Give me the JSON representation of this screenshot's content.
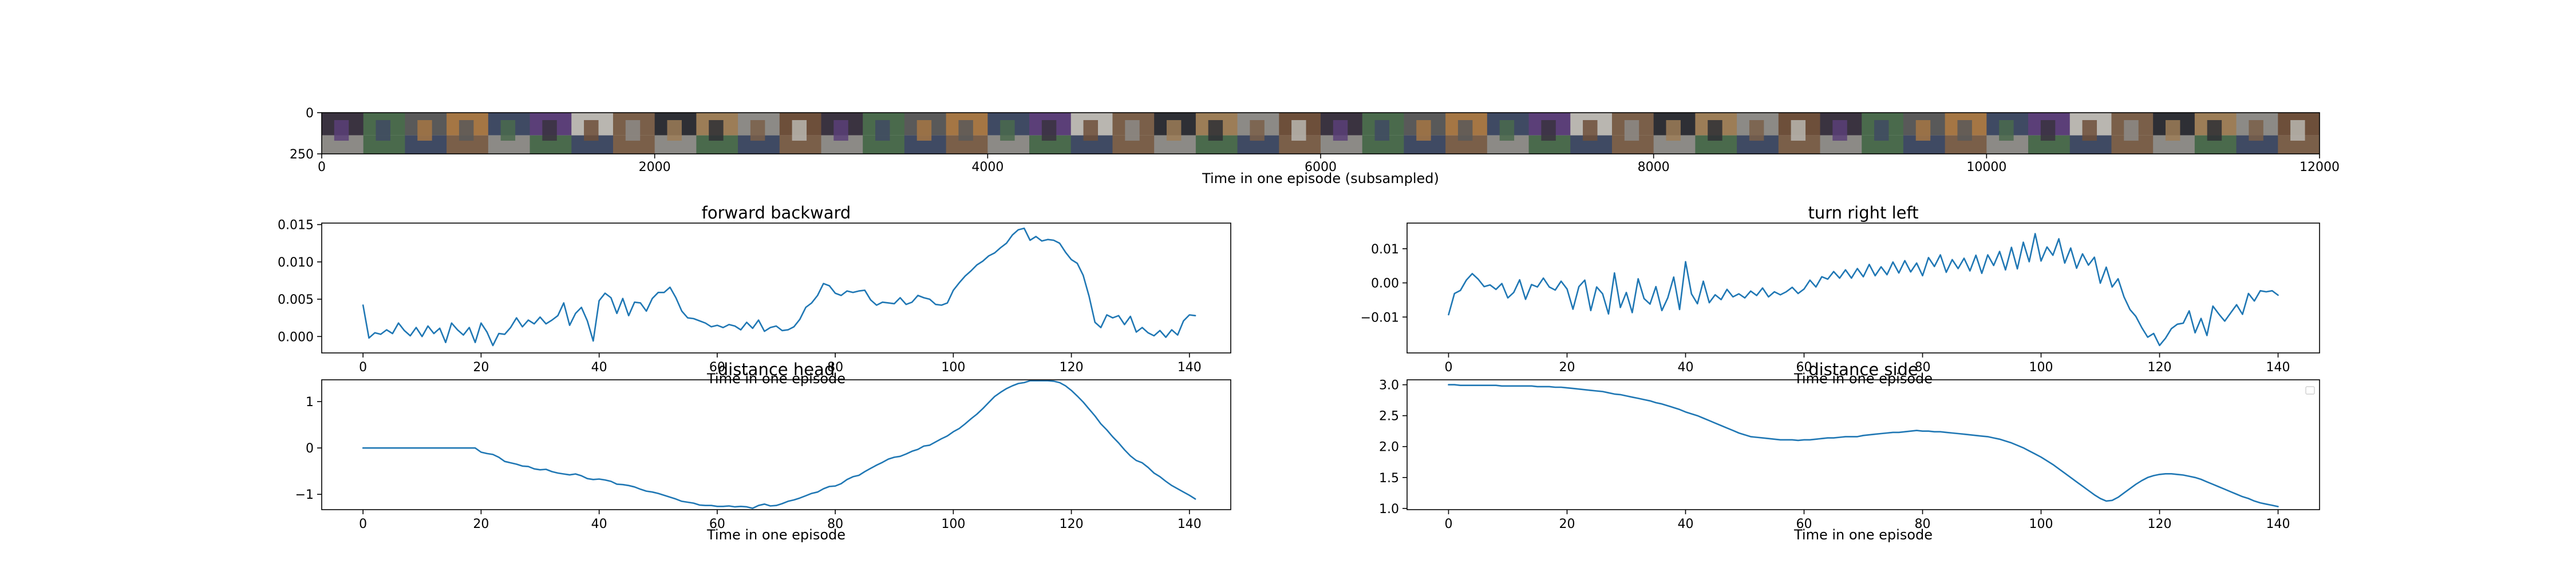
{
  "colors": {
    "series": "#1f77b4",
    "axis": "#000000"
  },
  "chart_data": [
    {
      "id": "strip",
      "type": "image",
      "title": "",
      "xlabel": "Time in one episode (subsampled)",
      "ylabel": "",
      "xlim": [
        0,
        12000
      ],
      "ylim": [
        250,
        0
      ],
      "xticks": [
        0,
        2000,
        4000,
        6000,
        8000,
        10000,
        12000
      ],
      "yticks": [
        0,
        250
      ],
      "frame_count": 48,
      "frame_palette": [
        "#7a5f49",
        "#3a3340",
        "#5b3f78",
        "#8c8a86",
        "#a57644",
        "#2e2f35",
        "#4a6a4c",
        "#b9b6b0",
        "#6d4f3a",
        "#3f4a63",
        "#9c7d57",
        "#595959"
      ],
      "grid": false,
      "legend": "none"
    },
    {
      "id": "fb",
      "type": "line",
      "title": "forward backward",
      "xlabel": "Time in one episode",
      "ylabel": "",
      "xlim": [
        -7,
        147
      ],
      "ylim": [
        -0.0022,
        0.0152
      ],
      "xticks": [
        0,
        20,
        40,
        60,
        80,
        100,
        120,
        140
      ],
      "yticks": [
        0.0,
        0.005,
        0.01,
        0.015
      ],
      "ytick_labels": [
        "0.000",
        "0.005",
        "0.010",
        "0.015"
      ],
      "grid": false,
      "legend": "none",
      "series": [
        {
          "name": "",
          "x_start": 0,
          "x_step": 1,
          "values": [
            0.0042,
            -0.0002,
            0.0005,
            0.0003,
            0.0009,
            0.0004,
            0.0018,
            0.0008,
            0.0001,
            0.0012,
            0.0,
            0.0014,
            0.0004,
            0.0011,
            -0.0008,
            0.0018,
            0.0009,
            0.0002,
            0.0012,
            -0.0008,
            0.0018,
            0.0006,
            -0.0012,
            0.0004,
            0.0003,
            0.0012,
            0.0025,
            0.0013,
            0.0022,
            0.0017,
            0.0026,
            0.0017,
            0.0022,
            0.0028,
            0.0045,
            0.0015,
            0.0031,
            0.0039,
            0.0021,
            -0.0006,
            0.0048,
            0.0058,
            0.0052,
            0.0031,
            0.0051,
            0.0028,
            0.0046,
            0.0045,
            0.0034,
            0.0051,
            0.0059,
            0.0059,
            0.0066,
            0.0052,
            0.0034,
            0.0025,
            0.0024,
            0.0021,
            0.0018,
            0.0013,
            0.0015,
            0.0012,
            0.0016,
            0.0014,
            0.0009,
            0.0019,
            0.0011,
            0.0022,
            0.0007,
            0.0012,
            0.0014,
            0.0008,
            0.0009,
            0.0013,
            0.0023,
            0.0039,
            0.0045,
            0.0055,
            0.0071,
            0.0068,
            0.0058,
            0.0055,
            0.0061,
            0.0059,
            0.0061,
            0.0062,
            0.0049,
            0.0042,
            0.0046,
            0.0045,
            0.0044,
            0.0052,
            0.0043,
            0.0046,
            0.0055,
            0.0052,
            0.005,
            0.0043,
            0.0042,
            0.0045,
            0.0062,
            0.0072,
            0.0081,
            0.0088,
            0.0096,
            0.0101,
            0.0108,
            0.0112,
            0.0119,
            0.0125,
            0.0136,
            0.0143,
            0.0145,
            0.0129,
            0.0134,
            0.0128,
            0.013,
            0.0129,
            0.0125,
            0.0113,
            0.0103,
            0.0098,
            0.0082,
            0.0054,
            0.0019,
            0.0012,
            0.0029,
            0.0025,
            0.0028,
            0.0016,
            0.0027,
            0.0006,
            0.0012,
            0.0005,
            0.0001,
            0.0008,
            -0.0001,
            0.0009,
            0.0002,
            0.0021,
            0.0029,
            0.0028
          ]
        }
      ]
    },
    {
      "id": "tr",
      "type": "line",
      "title": "turn right left",
      "xlabel": "Time in one episode",
      "ylabel": "",
      "xlim": [
        -7,
        147
      ],
      "ylim": [
        -0.0205,
        0.0175
      ],
      "xticks": [
        0,
        20,
        40,
        60,
        80,
        100,
        120,
        140
      ],
      "yticks": [
        -0.01,
        0.0,
        0.01
      ],
      "ytick_labels": [
        "−0.01",
        "0.00",
        "0.01"
      ],
      "grid": false,
      "legend": "none",
      "series": [
        {
          "name": "",
          "x_start": 0,
          "x_step": 1,
          "values": [
            -0.0093,
            -0.0031,
            -0.0022,
            0.0008,
            0.0027,
            0.0011,
            -0.0011,
            -0.0006,
            -0.0019,
            -0.0002,
            -0.0044,
            -0.0028,
            0.0009,
            -0.0048,
            -0.0005,
            -0.0012,
            0.0014,
            -0.0012,
            -0.0021,
            0.0005,
            -0.0018,
            -0.0077,
            -0.0011,
            0.0008,
            -0.0081,
            -0.0012,
            -0.0032,
            -0.0091,
            0.0029,
            -0.0072,
            -0.0028,
            -0.0087,
            0.0012,
            -0.0046,
            -0.0062,
            -0.0011,
            -0.0081,
            -0.0044,
            0.0017,
            -0.0078,
            0.0062,
            -0.0032,
            -0.0061,
            0.0005,
            -0.0058,
            -0.0035,
            -0.0049,
            -0.0019,
            -0.0041,
            -0.0032,
            -0.0044,
            -0.0024,
            -0.0037,
            -0.0015,
            -0.0041,
            -0.0026,
            -0.0035,
            -0.0026,
            -0.0013,
            -0.0031,
            -0.0018,
            0.0008,
            -0.0012,
            0.0018,
            0.0011,
            0.0033,
            0.0014,
            0.0038,
            0.0014,
            0.0042,
            0.0018,
            0.0054,
            0.0021,
            0.0047,
            0.0024,
            0.0061,
            0.0029,
            0.0065,
            0.0032,
            0.0058,
            0.0021,
            0.0074,
            0.0048,
            0.0082,
            0.0031,
            0.0068,
            0.0042,
            0.0072,
            0.0035,
            0.0081,
            0.0028,
            0.0082,
            0.0051,
            0.0092,
            0.0038,
            0.0104,
            0.0041,
            0.0119,
            0.0062,
            0.0144,
            0.0064,
            0.0105,
            0.0081,
            0.0129,
            0.0058,
            0.0102,
            0.0043,
            0.0085,
            0.0052,
            0.0075,
            -0.0001,
            0.0046,
            -0.0012,
            0.0012,
            -0.0041,
            -0.0078,
            -0.0098,
            -0.0131,
            -0.0159,
            -0.0148,
            -0.0183,
            -0.0162,
            -0.0134,
            -0.0121,
            -0.0118,
            -0.0082,
            -0.0146,
            -0.0104,
            -0.0154,
            -0.0068,
            -0.0091,
            -0.0112,
            -0.0088,
            -0.0064,
            -0.0092,
            -0.0031,
            -0.0053,
            -0.0023,
            -0.0026,
            -0.0023,
            -0.0036
          ]
        }
      ]
    },
    {
      "id": "dh",
      "type": "line",
      "title": "distance head",
      "xlabel": "Time in one episode",
      "ylabel": "",
      "xlim": [
        -7,
        147
      ],
      "ylim": [
        -1.33,
        1.47
      ],
      "xticks": [
        0,
        20,
        40,
        60,
        80,
        100,
        120,
        140
      ],
      "yticks": [
        -1,
        0,
        1
      ],
      "ytick_labels": [
        "−1",
        "0",
        "1"
      ],
      "grid": false,
      "legend": "none",
      "series": [
        {
          "name": "",
          "x_start": 0,
          "x_step": 1,
          "values": [
            0.0,
            0.0,
            0.0,
            0.0,
            0.0,
            0.0,
            0.0,
            0.0,
            0.0,
            0.0,
            0.0,
            0.0,
            0.0,
            0.0,
            0.0,
            0.0,
            0.0,
            0.0,
            0.0,
            0.0,
            -0.09,
            -0.12,
            -0.14,
            -0.2,
            -0.29,
            -0.32,
            -0.35,
            -0.39,
            -0.4,
            -0.45,
            -0.47,
            -0.46,
            -0.51,
            -0.54,
            -0.56,
            -0.58,
            -0.56,
            -0.6,
            -0.66,
            -0.68,
            -0.67,
            -0.69,
            -0.72,
            -0.78,
            -0.79,
            -0.81,
            -0.84,
            -0.89,
            -0.93,
            -0.95,
            -0.98,
            -1.02,
            -1.06,
            -1.1,
            -1.15,
            -1.17,
            -1.19,
            -1.23,
            -1.24,
            -1.24,
            -1.26,
            -1.26,
            -1.25,
            -1.27,
            -1.26,
            -1.27,
            -1.3,
            -1.24,
            -1.21,
            -1.25,
            -1.24,
            -1.2,
            -1.15,
            -1.12,
            -1.08,
            -1.03,
            -0.98,
            -0.95,
            -0.88,
            -0.83,
            -0.82,
            -0.77,
            -0.68,
            -0.62,
            -0.59,
            -0.51,
            -0.44,
            -0.37,
            -0.31,
            -0.24,
            -0.2,
            -0.18,
            -0.13,
            -0.07,
            -0.03,
            0.04,
            0.06,
            0.13,
            0.2,
            0.26,
            0.35,
            0.42,
            0.52,
            0.63,
            0.73,
            0.85,
            0.98,
            1.11,
            1.2,
            1.28,
            1.34,
            1.39,
            1.41,
            1.45,
            1.45,
            1.45,
            1.45,
            1.44,
            1.41,
            1.34,
            1.24,
            1.12,
            0.99,
            0.84,
            0.69,
            0.52,
            0.39,
            0.24,
            0.11,
            -0.04,
            -0.17,
            -0.27,
            -0.32,
            -0.42,
            -0.54,
            -0.62,
            -0.72,
            -0.81,
            -0.88,
            -0.95,
            -1.02,
            -1.1
          ]
        }
      ]
    },
    {
      "id": "ds",
      "type": "line",
      "title": "distance side",
      "xlabel": "Time in one episode",
      "ylabel": "",
      "xlim": [
        -7,
        147
      ],
      "ylim": [
        0.98,
        3.08
      ],
      "xticks": [
        0,
        20,
        40,
        60,
        80,
        100,
        120,
        140
      ],
      "yticks": [
        1.0,
        1.5,
        2.0,
        2.5,
        3.0
      ],
      "ytick_labels": [
        "1.0",
        "1.5",
        "2.0",
        "2.5",
        "3.0"
      ],
      "grid": false,
      "legend": "upper right (empty)",
      "series": [
        {
          "name": "",
          "x_start": 0,
          "x_step": 1,
          "values": [
            3.0,
            3.0,
            2.99,
            2.99,
            2.99,
            2.99,
            2.99,
            2.99,
            2.99,
            2.98,
            2.98,
            2.98,
            2.98,
            2.98,
            2.98,
            2.97,
            2.97,
            2.97,
            2.96,
            2.96,
            2.95,
            2.94,
            2.93,
            2.92,
            2.91,
            2.9,
            2.89,
            2.87,
            2.85,
            2.84,
            2.82,
            2.8,
            2.78,
            2.76,
            2.74,
            2.71,
            2.69,
            2.66,
            2.63,
            2.6,
            2.56,
            2.53,
            2.5,
            2.46,
            2.42,
            2.38,
            2.34,
            2.3,
            2.26,
            2.22,
            2.19,
            2.16,
            2.15,
            2.14,
            2.13,
            2.12,
            2.11,
            2.11,
            2.11,
            2.1,
            2.11,
            2.11,
            2.12,
            2.13,
            2.14,
            2.14,
            2.15,
            2.16,
            2.16,
            2.16,
            2.18,
            2.19,
            2.2,
            2.21,
            2.22,
            2.23,
            2.23,
            2.24,
            2.25,
            2.26,
            2.25,
            2.25,
            2.24,
            2.24,
            2.23,
            2.22,
            2.21,
            2.2,
            2.19,
            2.18,
            2.17,
            2.16,
            2.14,
            2.12,
            2.09,
            2.06,
            2.02,
            1.98,
            1.93,
            1.88,
            1.83,
            1.77,
            1.71,
            1.64,
            1.57,
            1.5,
            1.43,
            1.36,
            1.29,
            1.22,
            1.16,
            1.12,
            1.13,
            1.18,
            1.25,
            1.32,
            1.39,
            1.45,
            1.5,
            1.53,
            1.55,
            1.56,
            1.56,
            1.55,
            1.54,
            1.52,
            1.5,
            1.47,
            1.43,
            1.39,
            1.35,
            1.31,
            1.27,
            1.23,
            1.19,
            1.16,
            1.12,
            1.09,
            1.07,
            1.05,
            1.03
          ]
        }
      ]
    }
  ]
}
